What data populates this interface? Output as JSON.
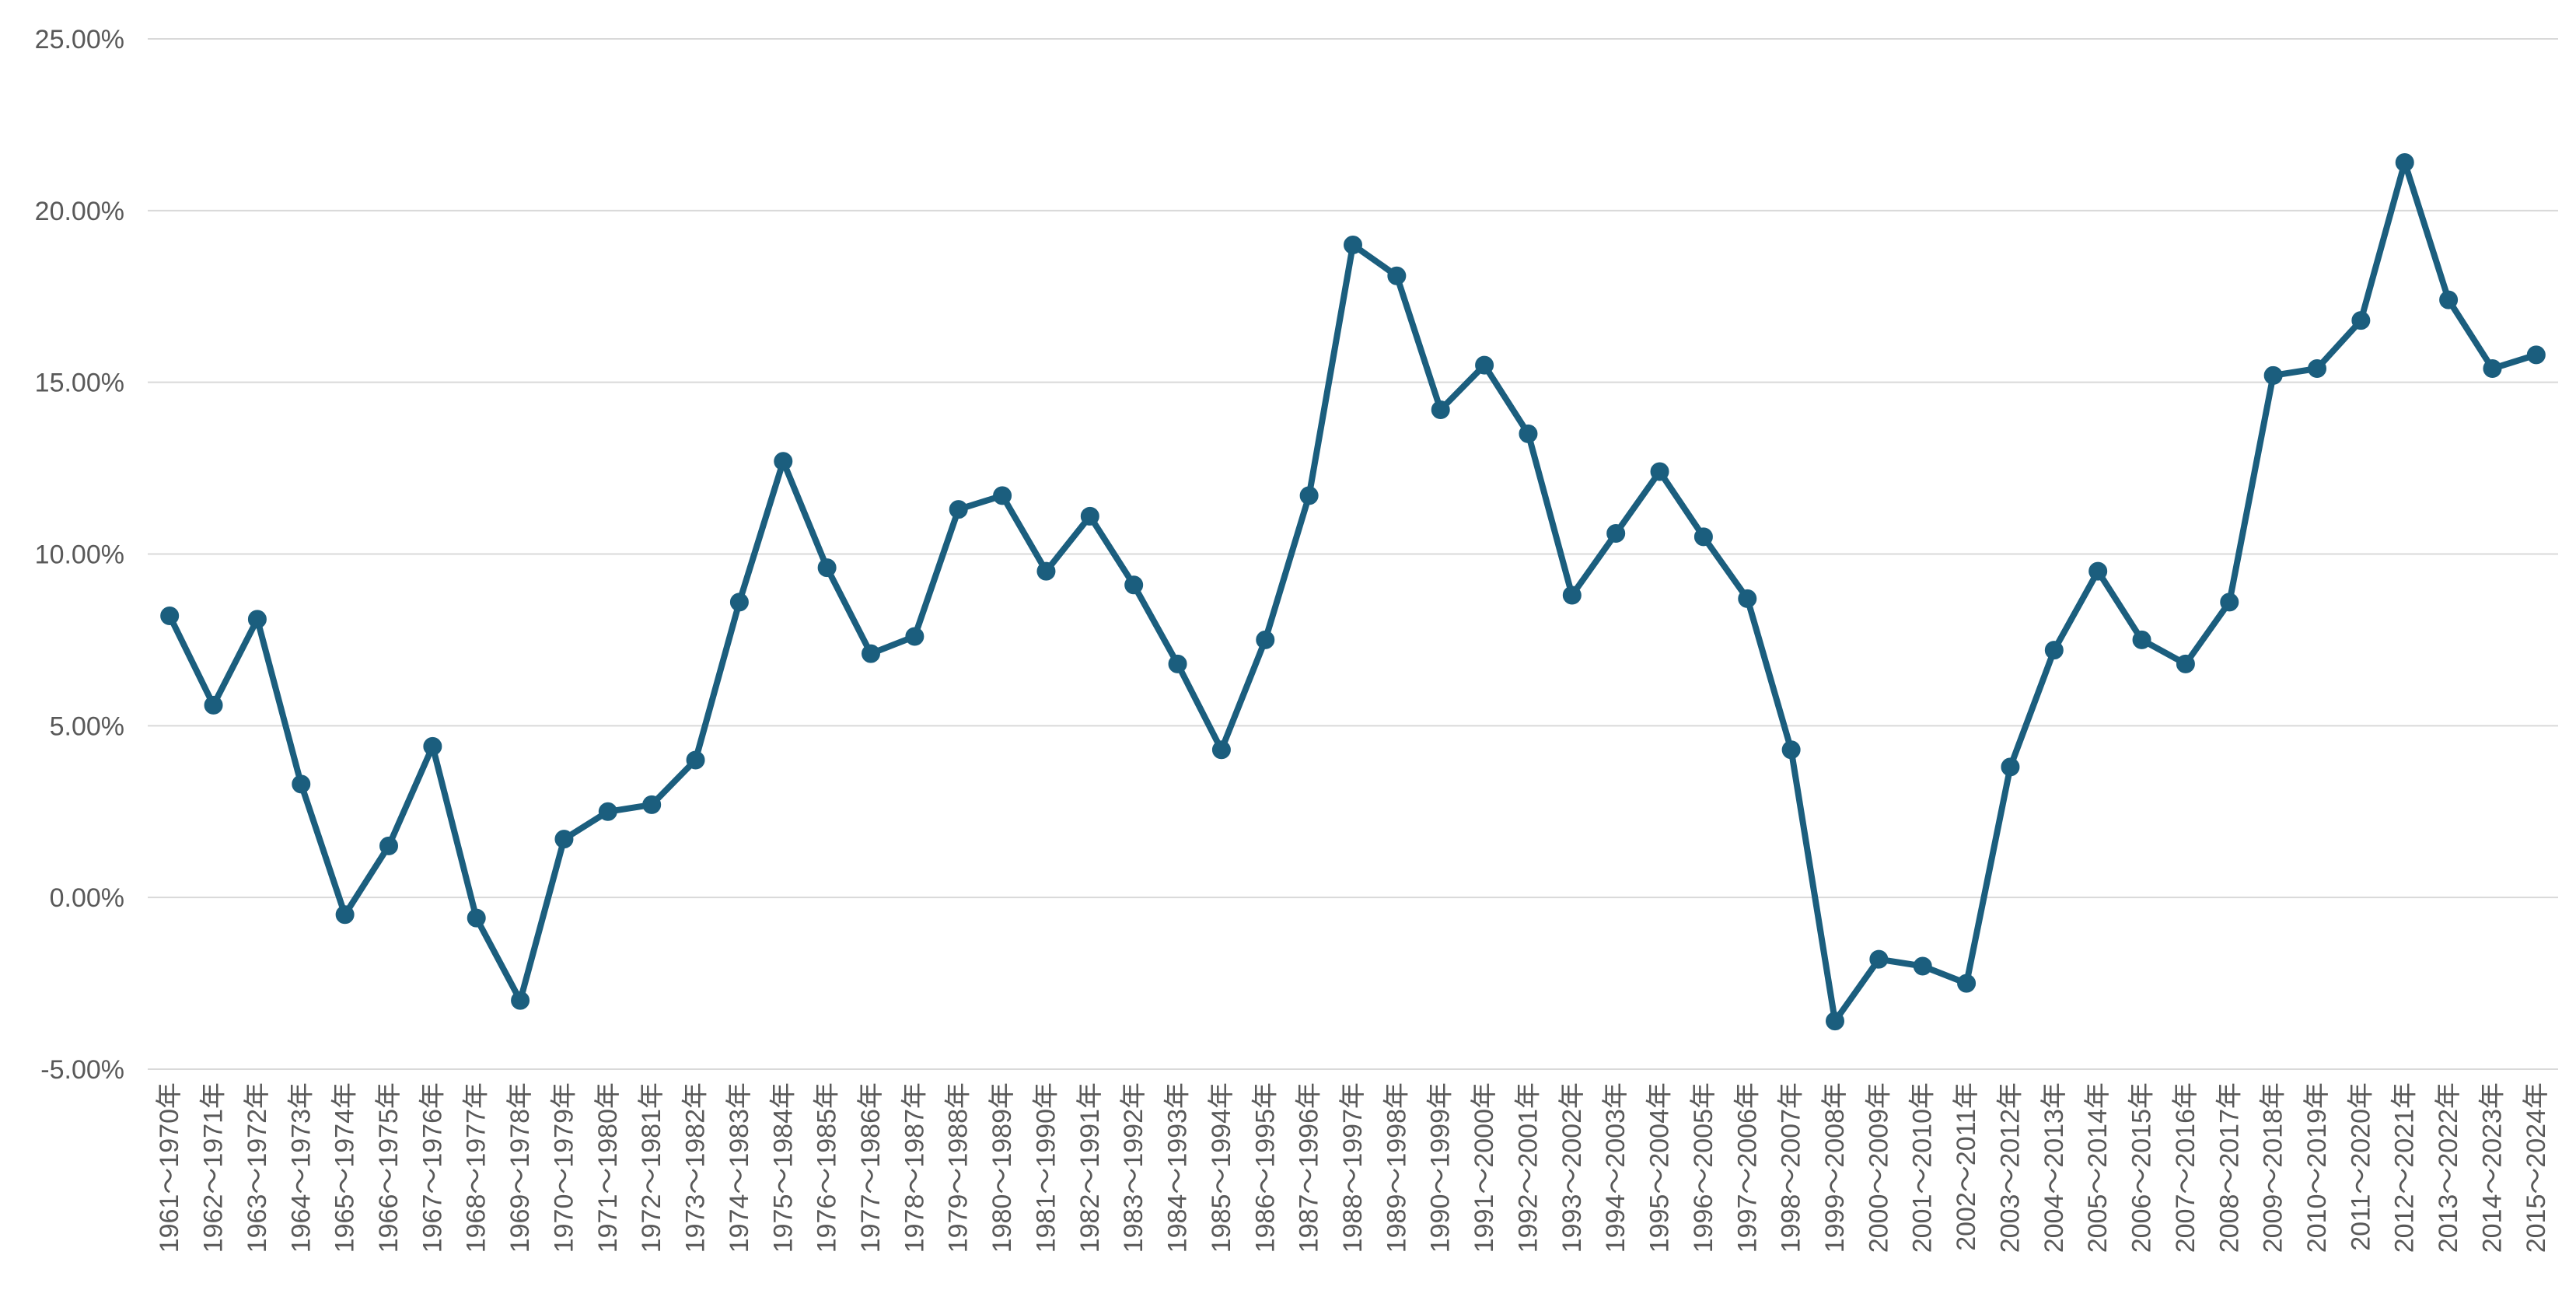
{
  "chart_data": {
    "type": "line",
    "title": "",
    "xlabel": "",
    "ylabel": "",
    "ylim": [
      -5,
      25
    ],
    "y_ticks": [
      25,
      20,
      15,
      10,
      5,
      0,
      -5
    ],
    "y_tick_labels": [
      "25.00%",
      "20.00%",
      "15.00%",
      "10.00%",
      "5.00%",
      "0.00%",
      "-5.00%"
    ],
    "grid": true,
    "legend": "none",
    "color": "#1b5e7e",
    "categories": [
      "1961〜1970年",
      "1962〜1971年",
      "1963〜1972年",
      "1964〜1973年",
      "1965〜1974年",
      "1966〜1975年",
      "1967〜1976年",
      "1968〜1977年",
      "1969〜1978年",
      "1970〜1979年",
      "1971〜1980年",
      "1972〜1981年",
      "1973〜1982年",
      "1974〜1983年",
      "1975〜1984年",
      "1976〜1985年",
      "1977〜1986年",
      "1978〜1987年",
      "1979〜1988年",
      "1980〜1989年",
      "1981〜1990年",
      "1982〜1991年",
      "1983〜1992年",
      "1984〜1993年",
      "1985〜1994年",
      "1986〜1995年",
      "1987〜1996年",
      "1988〜1997年",
      "1989〜1998年",
      "1990〜1999年",
      "1991〜2000年",
      "1992〜2001年",
      "1993〜2002年",
      "1994〜2003年",
      "1995〜2004年",
      "1996〜2005年",
      "1997〜2006年",
      "1998〜2007年",
      "1999〜2008年",
      "2000〜2009年",
      "2001〜2010年",
      "2002〜2011年",
      "2003〜2012年",
      "2004〜2013年",
      "2005〜2014年",
      "2006〜2015年",
      "2007〜2016年",
      "2008〜2017年",
      "2009〜2018年",
      "2010〜2019年",
      "2011〜2020年",
      "2012〜2021年",
      "2013〜2022年",
      "2014〜2023年",
      "2015〜2024年"
    ],
    "series": [
      {
        "values": [
          8.2,
          5.6,
          8.1,
          3.3,
          -0.5,
          1.5,
          4.4,
          -0.6,
          -3.0,
          1.7,
          2.5,
          2.7,
          4.0,
          8.6,
          12.7,
          9.6,
          7.1,
          7.6,
          11.3,
          11.7,
          9.5,
          11.1,
          9.1,
          6.8,
          4.3,
          7.5,
          11.7,
          19.0,
          18.1,
          14.2,
          15.5,
          13.5,
          8.8,
          10.6,
          12.4,
          10.5,
          8.7,
          4.3,
          -3.6,
          -1.8,
          -2.0,
          -2.5,
          3.8,
          7.2,
          9.5,
          7.5,
          6.8,
          8.6,
          15.2,
          15.4,
          16.8,
          21.4,
          17.4,
          15.4,
          15.8
        ]
      }
    ]
  }
}
